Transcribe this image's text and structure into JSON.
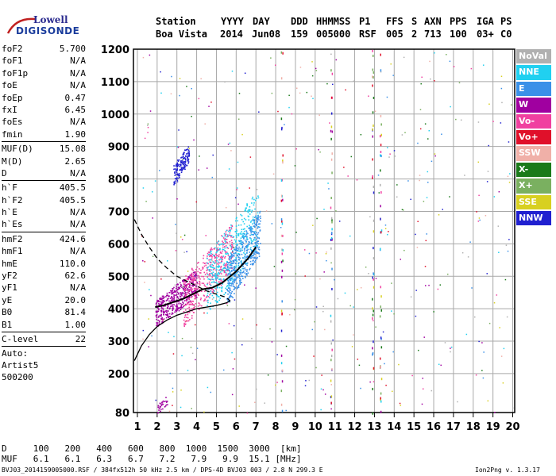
{
  "logo": {
    "line1": "Lowell",
    "line2": "DIGISONDE"
  },
  "header": {
    "labels": [
      "Station",
      "YYYY",
      "DAY",
      "DDD",
      "HHMMSS",
      "P1",
      "FFS",
      "S",
      "AXN",
      "PPS",
      "IGA",
      "PS"
    ],
    "values": [
      "Boa Vista",
      "2014",
      "Jun08",
      "159",
      "005000",
      "RSF",
      "005",
      "2",
      "713",
      "100",
      "03+",
      "C0"
    ]
  },
  "params": {
    "group1": [
      [
        "foF2",
        "5.700"
      ],
      [
        "foF1",
        "N/A"
      ],
      [
        "foF1p",
        "N/A"
      ],
      [
        "foE",
        "N/A"
      ],
      [
        "foEp",
        "0.47"
      ],
      [
        "fxI",
        "6.45"
      ],
      [
        "foEs",
        "N/A"
      ],
      [
        "fmin",
        "1.90"
      ]
    ],
    "group2": [
      [
        "MUF(D)",
        "15.08"
      ],
      [
        "M(D)",
        "2.65"
      ],
      [
        "D",
        "N/A"
      ]
    ],
    "group3": [
      [
        "h`F",
        "405.5"
      ],
      [
        "h`F2",
        "405.5"
      ],
      [
        "h`E",
        "N/A"
      ],
      [
        "h`Es",
        "N/A"
      ]
    ],
    "group4": [
      [
        "hmF2",
        "424.6"
      ],
      [
        "hmF1",
        "N/A"
      ],
      [
        "hmE",
        "110.0"
      ],
      [
        "yF2",
        "62.6"
      ],
      [
        "yF1",
        "N/A"
      ],
      [
        "yE",
        "20.0"
      ],
      [
        "B0",
        "81.4"
      ],
      [
        "B1",
        "1.00"
      ]
    ],
    "group5": [
      [
        "C-level",
        "22"
      ]
    ],
    "auto": [
      "Auto:",
      "Artist5",
      "500200"
    ]
  },
  "legend": [
    {
      "label": "NoVal",
      "color": "#b0b0b0"
    },
    {
      "label": "NNE",
      "color": "#20d0f0"
    },
    {
      "label": "E",
      "color": "#3a90e8"
    },
    {
      "label": "W",
      "color": "#a000a0"
    },
    {
      "label": "Vo-",
      "color": "#f040a0"
    },
    {
      "label": "Vo+",
      "color": "#e0102a"
    },
    {
      "label": "SSW",
      "color": "#f0b0a8"
    },
    {
      "label": "X-",
      "color": "#1a7a1a"
    },
    {
      "label": "X+",
      "color": "#7ab060"
    },
    {
      "label": "SSE",
      "color": "#d8d020"
    },
    {
      "label": "NNW",
      "color": "#2020d0"
    }
  ],
  "chart_data": {
    "type": "scatter",
    "title": "",
    "xlabel": "",
    "ylabel": "",
    "xlim": [
      0.8,
      20.1
    ],
    "ylim": [
      80,
      1200
    ],
    "x_ticks": [
      1,
      2,
      3,
      4,
      5,
      6,
      7,
      8,
      9,
      10,
      11,
      12,
      13,
      14,
      15,
      16,
      17,
      18,
      19,
      20
    ],
    "y_ticks": [
      80,
      200,
      300,
      400,
      500,
      600,
      700,
      800,
      900,
      1000,
      1100,
      1200
    ],
    "grid": true,
    "legend_position": "right",
    "ordinary_trace": {
      "x": [
        1.9,
        2.3,
        2.8,
        3.3,
        3.8,
        4.3,
        4.8,
        5.3,
        5.7,
        6.0,
        6.3,
        6.6,
        7.0
      ],
      "y": [
        405,
        410,
        420,
        430,
        445,
        460,
        465,
        480,
        500,
        515,
        535,
        555,
        590
      ]
    },
    "profile_solid": {
      "x": [
        0.85,
        1.2,
        1.6,
        2.0,
        2.5,
        3.0,
        3.5,
        4.0,
        4.5,
        5.0,
        5.5,
        5.7
      ],
      "y": [
        240,
        285,
        320,
        345,
        365,
        380,
        390,
        400,
        405,
        410,
        418,
        424
      ]
    },
    "profile_dashed": {
      "x": [
        0.85,
        1.2,
        1.6,
        2.0,
        2.5,
        3.0,
        3.5,
        4.0,
        4.5,
        5.0,
        5.5,
        5.7
      ],
      "y": [
        675,
        630,
        590,
        555,
        525,
        500,
        485,
        470,
        455,
        445,
        435,
        424
      ]
    },
    "clusters": [
      {
        "x": [
          1.9,
          4.0
        ],
        "y": [
          385,
          480
        ],
        "color": "#a000a0"
      },
      {
        "x": [
          3.3,
          5.8
        ],
        "y": [
          420,
          590
        ],
        "color": "#f040a0"
      },
      {
        "x": [
          4.5,
          7.1
        ],
        "y": [
          470,
          680
        ],
        "color": "#20d0f0"
      },
      {
        "x": [
          5.5,
          7.2
        ],
        "y": [
          480,
          640
        ],
        "color": "#3a90e8"
      },
      {
        "x": [
          2.8,
          3.6
        ],
        "y": [
          810,
          880
        ],
        "color": "#2020d0"
      },
      {
        "x": [
          2.0,
          2.5
        ],
        "y": [
          90,
          120
        ],
        "color": "#a000a0"
      }
    ]
  },
  "axis_info": {
    "d_label": "D",
    "d_values": [
      "100",
      "200",
      "400",
      "600",
      "800",
      "1000",
      "1500",
      "3000",
      "[km]"
    ],
    "muf_label": "MUF",
    "muf_values": [
      "6.1",
      "6.1",
      "6.3",
      "6.7",
      "7.2",
      "7.9",
      "9.9",
      "15.1",
      "[MHz]"
    ]
  },
  "footer": {
    "left": "BVJ03_2014159005000.RSF / 384fx512h 50 kHz 2.5 km / DPS-4D BVJ03 003 / 2.8 N 299.3 E",
    "right": "Ion2Png v. 1.3.17"
  }
}
